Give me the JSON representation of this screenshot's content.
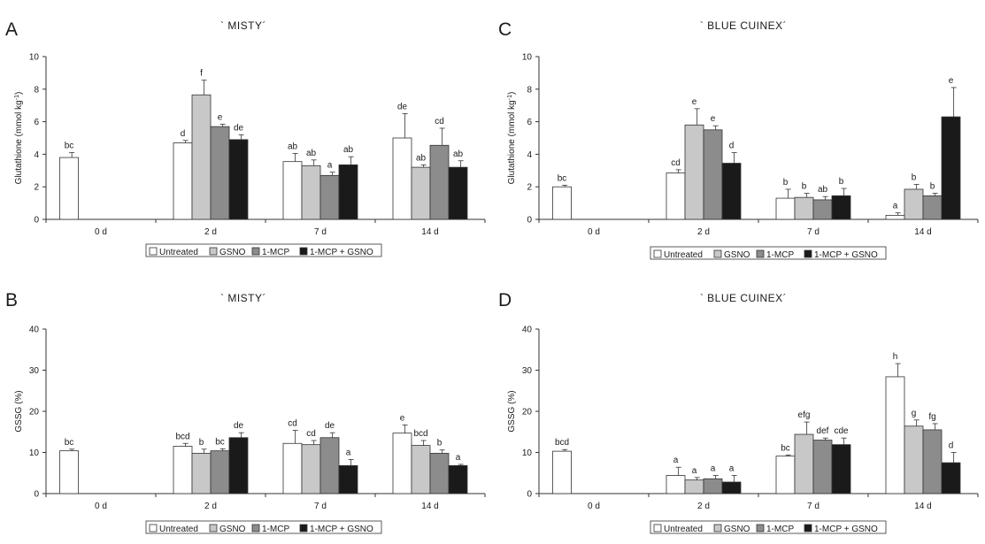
{
  "chart_data": [
    {
      "panel": "A",
      "type": "bar",
      "title": "` MISTY´",
      "ylabel": "Glutathione (mmol kg",
      "ylabel_sup": "-1",
      "ylabel_end": ")",
      "ylim": [
        0,
        10
      ],
      "yticks": [
        0,
        2,
        4,
        6,
        8,
        10
      ],
      "categories": [
        "0 d",
        "2 d",
        "7 d",
        "14 d"
      ],
      "legend": [
        "Untreated",
        "GSNO",
        "1-MCP",
        "1-MCP + GSNO"
      ],
      "legend_position": "bottom",
      "series": [
        {
          "name": "Untreated",
          "color": "#ffffff",
          "values": [
            3.8,
            4.7,
            3.55,
            5.0
          ],
          "errors": [
            0.3,
            0.15,
            0.5,
            1.5
          ],
          "labels": [
            "bc",
            "d",
            "ab",
            "de"
          ]
        },
        {
          "name": "GSNO",
          "color": "#c8c8c8",
          "values": [
            null,
            7.65,
            3.3,
            3.2
          ],
          "errors": [
            null,
            0.9,
            0.35,
            0.15
          ],
          "labels": [
            null,
            "f",
            "ab",
            "ab"
          ]
        },
        {
          "name": "1-MCP",
          "color": "#8c8c8c",
          "values": [
            null,
            5.7,
            2.7,
            4.55
          ],
          "errors": [
            null,
            0.15,
            0.2,
            1.05
          ],
          "labels": [
            null,
            "e",
            "a",
            "cd"
          ]
        },
        {
          "name": "1-MCP + GSNO",
          "color": "#1a1a1a",
          "values": [
            null,
            4.9,
            3.35,
            3.2
          ],
          "errors": [
            null,
            0.3,
            0.5,
            0.4
          ],
          "labels": [
            null,
            "de",
            "ab",
            "ab"
          ]
        }
      ]
    },
    {
      "panel": "C",
      "type": "bar",
      "title": "` BLUE CUINEX´",
      "ylabel": "Glutathione (mmol kg",
      "ylabel_sup": "-1",
      "ylabel_end": ")",
      "ylim": [
        0,
        10
      ],
      "yticks": [
        0,
        2,
        4,
        6,
        8,
        10
      ],
      "categories": [
        "0 d",
        "2 d",
        "7 d",
        "14 d"
      ],
      "legend": [
        "Untreated",
        "GSNO",
        "1-MCP",
        "1-MCP + GSNO"
      ],
      "legend_position": "bottom",
      "series": [
        {
          "name": "Untreated",
          "color": "#ffffff",
          "values": [
            2.0,
            2.85,
            1.3,
            0.25
          ],
          "errors": [
            0.1,
            0.2,
            0.55,
            0.15
          ],
          "labels": [
            "bc",
            "cd",
            "b",
            "a"
          ]
        },
        {
          "name": "GSNO",
          "color": "#c8c8c8",
          "values": [
            null,
            5.8,
            1.35,
            1.85
          ],
          "errors": [
            null,
            1.0,
            0.25,
            0.3
          ],
          "labels": [
            null,
            "e",
            "b",
            "b"
          ]
        },
        {
          "name": "1-MCP",
          "color": "#8c8c8c",
          "values": [
            null,
            5.5,
            1.2,
            1.45
          ],
          "errors": [
            null,
            0.25,
            0.2,
            0.15
          ],
          "labels": [
            null,
            "e",
            "ab",
            "b"
          ]
        },
        {
          "name": "1-MCP + GSNO",
          "color": "#1a1a1a",
          "values": [
            null,
            3.45,
            1.45,
            6.3
          ],
          "errors": [
            null,
            0.65,
            0.45,
            1.8
          ],
          "labels": [
            null,
            "d",
            "b",
            "e"
          ]
        }
      ]
    },
    {
      "panel": "B",
      "type": "bar",
      "title": "` MISTY´",
      "ylabel": "GSSG (%)",
      "ylim": [
        0,
        40
      ],
      "yticks": [
        0,
        10,
        20,
        30,
        40
      ],
      "categories": [
        "0 d",
        "2 d",
        "7 d",
        "14 d"
      ],
      "legend": [
        "Untreated",
        "GSNO",
        "1-MCP",
        "1-MCP + GSNO"
      ],
      "legend_position": "bottom",
      "series": [
        {
          "name": "Untreated",
          "color": "#ffffff",
          "values": [
            10.4,
            11.5,
            12.2,
            14.7
          ],
          "errors": [
            0.4,
            0.7,
            3.2,
            2.0
          ],
          "labels": [
            "bc",
            "bcd",
            "cd",
            "e"
          ]
        },
        {
          "name": "GSNO",
          "color": "#c8c8c8",
          "values": [
            null,
            9.8,
            11.9,
            11.7
          ],
          "errors": [
            null,
            1.0,
            1.0,
            1.2
          ],
          "labels": [
            null,
            "b",
            "cd",
            "bcd"
          ]
        },
        {
          "name": "1-MCP",
          "color": "#8c8c8c",
          "values": [
            null,
            10.4,
            13.6,
            9.8
          ],
          "errors": [
            null,
            0.5,
            1.2,
            0.8
          ],
          "labels": [
            null,
            "bc",
            "de",
            "b"
          ]
        },
        {
          "name": "1-MCP + GSNO",
          "color": "#1a1a1a",
          "values": [
            null,
            13.6,
            6.8,
            6.8
          ],
          "errors": [
            null,
            1.2,
            1.5,
            0.3
          ],
          "labels": [
            null,
            "de",
            "a",
            "a"
          ]
        }
      ]
    },
    {
      "panel": "D",
      "type": "bar",
      "title": "` BLUE CUINEX´",
      "ylabel": "GSSG (%)",
      "ylim": [
        0,
        40
      ],
      "yticks": [
        0,
        10,
        20,
        30,
        40
      ],
      "categories": [
        "0 d",
        "2 d",
        "7 d",
        "14 d"
      ],
      "legend": [
        "Untreated",
        "GSNO",
        "1-MCP",
        "1-MCP + GSNO"
      ],
      "legend_position": "bottom",
      "series": [
        {
          "name": "Untreated",
          "color": "#ffffff",
          "values": [
            10.3,
            4.4,
            9.1,
            28.4
          ],
          "errors": [
            0.4,
            2.0,
            0.3,
            3.2
          ],
          "labels": [
            "bcd",
            "a",
            "bc",
            "h"
          ]
        },
        {
          "name": "GSNO",
          "color": "#c8c8c8",
          "values": [
            null,
            3.3,
            14.4,
            16.4
          ],
          "errors": [
            null,
            0.6,
            3.0,
            1.5
          ],
          "labels": [
            null,
            "a",
            "efg",
            "g"
          ]
        },
        {
          "name": "1-MCP",
          "color": "#8c8c8c",
          "values": [
            null,
            3.6,
            13.0,
            15.5
          ],
          "errors": [
            null,
            0.8,
            0.5,
            1.5
          ],
          "labels": [
            null,
            "a",
            "def",
            "fg"
          ]
        },
        {
          "name": "1-MCP + GSNO",
          "color": "#1a1a1a",
          "values": [
            null,
            2.8,
            11.9,
            7.5
          ],
          "errors": [
            null,
            1.6,
            1.6,
            2.5
          ],
          "labels": [
            null,
            "a",
            "cde",
            "d"
          ]
        }
      ]
    }
  ]
}
